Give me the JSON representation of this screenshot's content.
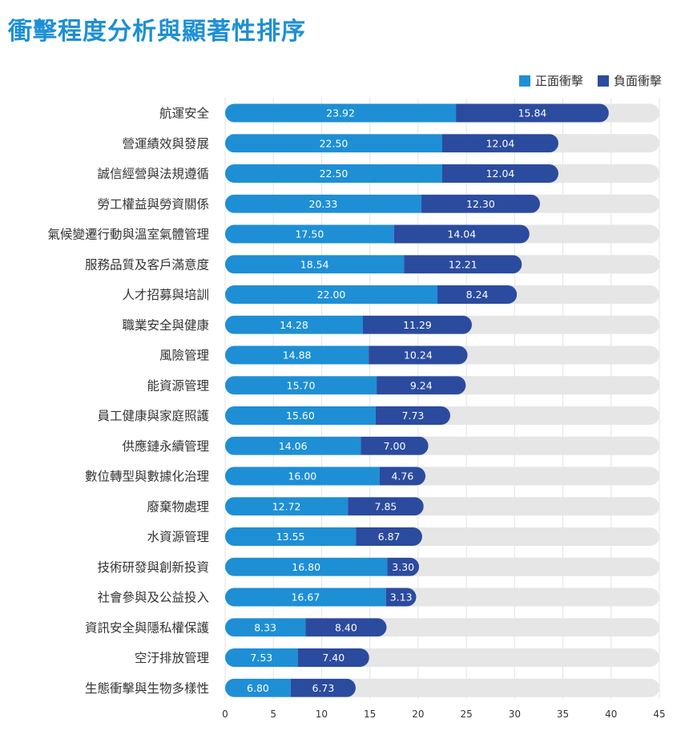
{
  "colors": {
    "positive": "#1e8fd5",
    "negative": "#2b4b9e",
    "track": "#e6e6e6",
    "title": "#1e8fd5"
  },
  "chart_data": {
    "type": "bar",
    "orientation": "horizontal",
    "stacked": true,
    "title": "衝擊程度分析與顯著性排序",
    "categories": [
      "航運安全",
      "營運績效與發展",
      "誠信經營與法規遵循",
      "勞工權益與勞資關係",
      "氣候變遷行動與溫室氣體管理",
      "服務品質及客戶滿意度",
      "人才招募與培訓",
      "職業安全與健康",
      "風險管理",
      "能資源管理",
      "員工健康與家庭照護",
      "供應鏈永續管理",
      "數位轉型與數據化治理",
      "廢棄物處理",
      "水資源管理",
      "技術研發與創新投資",
      "社會參與及公益投入",
      "資訊安全與隱私權保護",
      "空汙排放管理",
      "生態衝擊與生物多樣性"
    ],
    "series": [
      {
        "name": "正面衝擊",
        "values": [
          23.92,
          22.5,
          22.5,
          20.33,
          17.5,
          18.54,
          22.0,
          14.28,
          14.88,
          15.7,
          15.6,
          14.06,
          16.0,
          12.72,
          13.55,
          16.8,
          16.67,
          8.33,
          7.53,
          6.8
        ]
      },
      {
        "name": "負面衝擊",
        "values": [
          15.84,
          12.04,
          12.04,
          12.3,
          14.04,
          12.21,
          8.24,
          11.29,
          10.24,
          9.24,
          7.73,
          7.0,
          4.76,
          7.85,
          6.87,
          3.3,
          3.13,
          8.4,
          7.4,
          6.73
        ]
      }
    ],
    "value_labels": {
      "positive": [
        "23.92",
        "22.50",
        "22.50",
        "20.33",
        "17.50",
        "18.54",
        "22.00",
        "14.28",
        "14.88",
        "15.70",
        "15.60",
        "14.06",
        "16.00",
        "12.72",
        "13.55",
        "16.80",
        "16.67",
        "8.33",
        "7.53",
        "6.80"
      ],
      "negative": [
        "15.84",
        "12.04",
        "12.04",
        "12.30",
        "14.04",
        "12.21",
        "8.24",
        "11.29",
        "10.24",
        "9.24",
        "7.73",
        "7.00",
        "4.76",
        "7.85",
        "6.87",
        "3.30",
        "3.13",
        "8.40",
        "7.40",
        "6.73"
      ]
    },
    "xlim": [
      0,
      45
    ],
    "xticks": [
      "0",
      "5",
      "10",
      "15",
      "20",
      "25",
      "30",
      "35",
      "40",
      "45"
    ],
    "legend": "top-right",
    "grid": true
  }
}
